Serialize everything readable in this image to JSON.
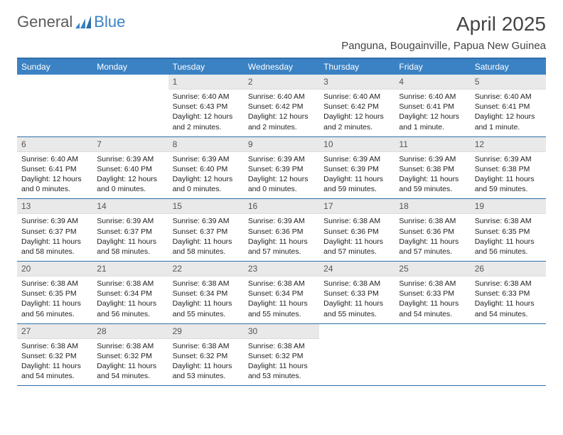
{
  "brand": {
    "general": "General",
    "blue": "Blue"
  },
  "title": "April 2025",
  "location": "Panguna, Bougainville, Papua New Guinea",
  "colors": {
    "header_bg": "#3b82c4",
    "border": "#2f6fa8",
    "daynum_bg": "#e9e9e9",
    "text": "#333333",
    "logo_gray": "#5a5a5a"
  },
  "day_labels": [
    "Sunday",
    "Monday",
    "Tuesday",
    "Wednesday",
    "Thursday",
    "Friday",
    "Saturday"
  ],
  "weeks": [
    [
      {
        "n": "",
        "sr": "",
        "ss": "",
        "dl": ""
      },
      {
        "n": "",
        "sr": "",
        "ss": "",
        "dl": ""
      },
      {
        "n": "1",
        "sr": "Sunrise: 6:40 AM",
        "ss": "Sunset: 6:43 PM",
        "dl": "Daylight: 12 hours and 2 minutes."
      },
      {
        "n": "2",
        "sr": "Sunrise: 6:40 AM",
        "ss": "Sunset: 6:42 PM",
        "dl": "Daylight: 12 hours and 2 minutes."
      },
      {
        "n": "3",
        "sr": "Sunrise: 6:40 AM",
        "ss": "Sunset: 6:42 PM",
        "dl": "Daylight: 12 hours and 2 minutes."
      },
      {
        "n": "4",
        "sr": "Sunrise: 6:40 AM",
        "ss": "Sunset: 6:41 PM",
        "dl": "Daylight: 12 hours and 1 minute."
      },
      {
        "n": "5",
        "sr": "Sunrise: 6:40 AM",
        "ss": "Sunset: 6:41 PM",
        "dl": "Daylight: 12 hours and 1 minute."
      }
    ],
    [
      {
        "n": "6",
        "sr": "Sunrise: 6:40 AM",
        "ss": "Sunset: 6:41 PM",
        "dl": "Daylight: 12 hours and 0 minutes."
      },
      {
        "n": "7",
        "sr": "Sunrise: 6:39 AM",
        "ss": "Sunset: 6:40 PM",
        "dl": "Daylight: 12 hours and 0 minutes."
      },
      {
        "n": "8",
        "sr": "Sunrise: 6:39 AM",
        "ss": "Sunset: 6:40 PM",
        "dl": "Daylight: 12 hours and 0 minutes."
      },
      {
        "n": "9",
        "sr": "Sunrise: 6:39 AM",
        "ss": "Sunset: 6:39 PM",
        "dl": "Daylight: 12 hours and 0 minutes."
      },
      {
        "n": "10",
        "sr": "Sunrise: 6:39 AM",
        "ss": "Sunset: 6:39 PM",
        "dl": "Daylight: 11 hours and 59 minutes."
      },
      {
        "n": "11",
        "sr": "Sunrise: 6:39 AM",
        "ss": "Sunset: 6:38 PM",
        "dl": "Daylight: 11 hours and 59 minutes."
      },
      {
        "n": "12",
        "sr": "Sunrise: 6:39 AM",
        "ss": "Sunset: 6:38 PM",
        "dl": "Daylight: 11 hours and 59 minutes."
      }
    ],
    [
      {
        "n": "13",
        "sr": "Sunrise: 6:39 AM",
        "ss": "Sunset: 6:37 PM",
        "dl": "Daylight: 11 hours and 58 minutes."
      },
      {
        "n": "14",
        "sr": "Sunrise: 6:39 AM",
        "ss": "Sunset: 6:37 PM",
        "dl": "Daylight: 11 hours and 58 minutes."
      },
      {
        "n": "15",
        "sr": "Sunrise: 6:39 AM",
        "ss": "Sunset: 6:37 PM",
        "dl": "Daylight: 11 hours and 58 minutes."
      },
      {
        "n": "16",
        "sr": "Sunrise: 6:39 AM",
        "ss": "Sunset: 6:36 PM",
        "dl": "Daylight: 11 hours and 57 minutes."
      },
      {
        "n": "17",
        "sr": "Sunrise: 6:38 AM",
        "ss": "Sunset: 6:36 PM",
        "dl": "Daylight: 11 hours and 57 minutes."
      },
      {
        "n": "18",
        "sr": "Sunrise: 6:38 AM",
        "ss": "Sunset: 6:36 PM",
        "dl": "Daylight: 11 hours and 57 minutes."
      },
      {
        "n": "19",
        "sr": "Sunrise: 6:38 AM",
        "ss": "Sunset: 6:35 PM",
        "dl": "Daylight: 11 hours and 56 minutes."
      }
    ],
    [
      {
        "n": "20",
        "sr": "Sunrise: 6:38 AM",
        "ss": "Sunset: 6:35 PM",
        "dl": "Daylight: 11 hours and 56 minutes."
      },
      {
        "n": "21",
        "sr": "Sunrise: 6:38 AM",
        "ss": "Sunset: 6:34 PM",
        "dl": "Daylight: 11 hours and 56 minutes."
      },
      {
        "n": "22",
        "sr": "Sunrise: 6:38 AM",
        "ss": "Sunset: 6:34 PM",
        "dl": "Daylight: 11 hours and 55 minutes."
      },
      {
        "n": "23",
        "sr": "Sunrise: 6:38 AM",
        "ss": "Sunset: 6:34 PM",
        "dl": "Daylight: 11 hours and 55 minutes."
      },
      {
        "n": "24",
        "sr": "Sunrise: 6:38 AM",
        "ss": "Sunset: 6:33 PM",
        "dl": "Daylight: 11 hours and 55 minutes."
      },
      {
        "n": "25",
        "sr": "Sunrise: 6:38 AM",
        "ss": "Sunset: 6:33 PM",
        "dl": "Daylight: 11 hours and 54 minutes."
      },
      {
        "n": "26",
        "sr": "Sunrise: 6:38 AM",
        "ss": "Sunset: 6:33 PM",
        "dl": "Daylight: 11 hours and 54 minutes."
      }
    ],
    [
      {
        "n": "27",
        "sr": "Sunrise: 6:38 AM",
        "ss": "Sunset: 6:32 PM",
        "dl": "Daylight: 11 hours and 54 minutes."
      },
      {
        "n": "28",
        "sr": "Sunrise: 6:38 AM",
        "ss": "Sunset: 6:32 PM",
        "dl": "Daylight: 11 hours and 54 minutes."
      },
      {
        "n": "29",
        "sr": "Sunrise: 6:38 AM",
        "ss": "Sunset: 6:32 PM",
        "dl": "Daylight: 11 hours and 53 minutes."
      },
      {
        "n": "30",
        "sr": "Sunrise: 6:38 AM",
        "ss": "Sunset: 6:32 PM",
        "dl": "Daylight: 11 hours and 53 minutes."
      },
      {
        "n": "",
        "sr": "",
        "ss": "",
        "dl": ""
      },
      {
        "n": "",
        "sr": "",
        "ss": "",
        "dl": ""
      },
      {
        "n": "",
        "sr": "",
        "ss": "",
        "dl": ""
      }
    ]
  ]
}
